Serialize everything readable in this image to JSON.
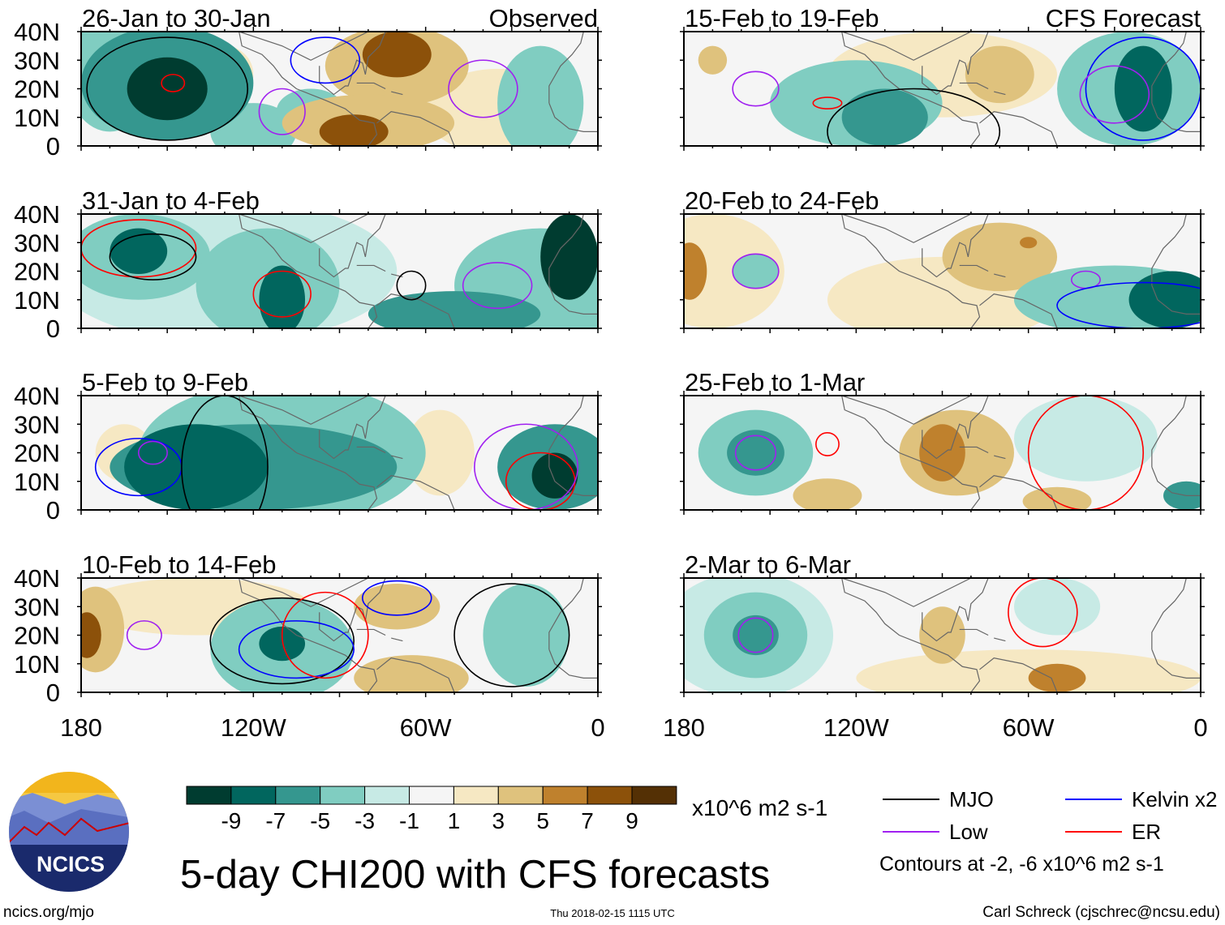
{
  "chart_data": {
    "type": "heatmap",
    "title": "5-day CHI200 with CFS forecasts",
    "units": "x10^6 m2 s-1",
    "lat_ticks": [
      "40N",
      "30N",
      "20N",
      "10N",
      "0"
    ],
    "lat_values": [
      40,
      30,
      20,
      10,
      0
    ],
    "lon_ticks": [
      "180",
      "120W",
      "60W",
      "0"
    ],
    "lon_values": [
      -180,
      -120,
      -60,
      0
    ],
    "xlim": [
      -180,
      0
    ],
    "ylim": [
      0,
      40
    ],
    "colorbar": {
      "labels": [
        "-9",
        "-7",
        "-5",
        "-3",
        "-1",
        "1",
        "3",
        "5",
        "7",
        "9"
      ],
      "colors": [
        "#003c30",
        "#01665e",
        "#35978f",
        "#80cdc1",
        "#c7eae5",
        "#f5f5f5",
        "#f6e8c3",
        "#dfc27d",
        "#bf812d",
        "#8c510a",
        "#543005"
      ]
    },
    "legend": {
      "items": [
        {
          "label": "MJO",
          "color": "#000000"
        },
        {
          "label": "Low",
          "color": "#a020f0"
        },
        {
          "label": "Kelvin x2",
          "color": "#0000ff"
        },
        {
          "label": "ER",
          "color": "#ff0000"
        }
      ],
      "note": "Contours at -2, -6 x10^6 m2 s-1"
    },
    "panels": [
      {
        "title": "26-Jan to 30-Jan",
        "tag": "Observed",
        "blobs": [
          [
            -150,
            22,
            -5,
            30,
            20
          ],
          [
            -170,
            25,
            -3,
            15,
            20
          ],
          [
            -120,
            5,
            -3,
            15,
            10
          ],
          [
            -100,
            12,
            -3,
            12,
            8
          ],
          [
            -20,
            15,
            -3,
            15,
            20
          ],
          [
            -150,
            20,
            -9,
            14,
            11
          ],
          [
            -70,
            28,
            3,
            25,
            14
          ],
          [
            -80,
            8,
            3,
            30,
            10
          ],
          [
            -70,
            32,
            7,
            12,
            8
          ],
          [
            -85,
            5,
            7,
            12,
            6
          ],
          [
            -130,
            25,
            1,
            10,
            10
          ],
          [
            -35,
            12,
            1,
            25,
            15
          ]
        ],
        "contours": [
          [
            "MJO",
            -150,
            20,
            28,
            18
          ],
          [
            "Kelvin x2",
            -95,
            30,
            12,
            8
          ],
          [
            "Low",
            -110,
            12,
            8,
            8
          ],
          [
            "ER",
            -148,
            22,
            4,
            3
          ],
          [
            "Low",
            -40,
            20,
            12,
            10
          ]
        ]
      },
      {
        "title": "31-Jan to 4-Feb",
        "tag": "",
        "blobs": [
          [
            -130,
            20,
            -1,
            60,
            25
          ],
          [
            -160,
            25,
            -3,
            25,
            15
          ],
          [
            -115,
            15,
            -3,
            25,
            20
          ],
          [
            -20,
            15,
            -3,
            30,
            20
          ],
          [
            -50,
            5,
            -5,
            30,
            8
          ],
          [
            -160,
            27,
            -7,
            10,
            8
          ],
          [
            -110,
            10,
            -7,
            8,
            12
          ],
          [
            -10,
            25,
            -9,
            10,
            15
          ]
        ],
        "contours": [
          [
            "ER",
            -160,
            28,
            20,
            10
          ],
          [
            "MJO",
            -155,
            25,
            15,
            8
          ],
          [
            "ER",
            -110,
            12,
            10,
            8
          ],
          [
            "Low",
            -35,
            15,
            12,
            8
          ],
          [
            "MJO",
            -65,
            15,
            5,
            5
          ]
        ]
      },
      {
        "title": "5-Feb to 9-Feb",
        "tag": "",
        "blobs": [
          [
            -110,
            20,
            -3,
            50,
            25
          ],
          [
            -120,
            15,
            -5,
            50,
            15
          ],
          [
            -15,
            15,
            -5,
            20,
            15
          ],
          [
            -140,
            15,
            -7,
            25,
            15
          ],
          [
            -15,
            12,
            -9,
            8,
            8
          ],
          [
            -55,
            20,
            1,
            12,
            15
          ],
          [
            -165,
            20,
            1,
            10,
            10
          ]
        ],
        "contours": [
          [
            "Kelvin x2",
            -160,
            15,
            15,
            10
          ],
          [
            "Low",
            -155,
            20,
            5,
            4
          ],
          [
            "ER",
            -20,
            10,
            12,
            10
          ],
          [
            "Low",
            -25,
            15,
            18,
            15
          ],
          [
            "MJO",
            -130,
            15,
            15,
            25
          ]
        ]
      },
      {
        "title": "10-Feb to 14-Feb",
        "tag": "",
        "blobs": [
          [
            -140,
            30,
            1,
            40,
            10
          ],
          [
            -175,
            22,
            3,
            10,
            15
          ],
          [
            -178,
            20,
            7,
            5,
            8
          ],
          [
            -110,
            15,
            -3,
            25,
            18
          ],
          [
            -110,
            17,
            -7,
            8,
            6
          ],
          [
            -70,
            30,
            3,
            15,
            8
          ],
          [
            -65,
            5,
            3,
            20,
            8
          ],
          [
            -25,
            20,
            -3,
            15,
            18
          ]
        ],
        "contours": [
          [
            "Low",
            -158,
            20,
            6,
            5
          ],
          [
            "MJO",
            -110,
            18,
            25,
            15
          ],
          [
            "Kelvin x2",
            -105,
            15,
            20,
            10
          ],
          [
            "ER",
            -95,
            20,
            15,
            15
          ],
          [
            "Kelvin x2",
            -70,
            33,
            12,
            6
          ],
          [
            "MJO",
            -30,
            20,
            20,
            18
          ]
        ]
      },
      {
        "title": "15-Feb to 19-Feb",
        "tag": "CFS Forecast",
        "blobs": [
          [
            -90,
            25,
            1,
            40,
            15
          ],
          [
            -25,
            20,
            -3,
            25,
            20
          ],
          [
            -120,
            15,
            -3,
            30,
            15
          ],
          [
            -110,
            10,
            -5,
            15,
            10
          ],
          [
            -20,
            20,
            -7,
            10,
            15
          ],
          [
            -70,
            25,
            3,
            12,
            10
          ],
          [
            -170,
            30,
            3,
            5,
            5
          ]
        ],
        "contours": [
          [
            "Low",
            -155,
            20,
            8,
            6
          ],
          [
            "ER",
            -130,
            15,
            5,
            2
          ],
          [
            "Kelvin x2",
            -20,
            20,
            20,
            18
          ],
          [
            "Low",
            -30,
            18,
            12,
            10
          ],
          [
            "MJO",
            -100,
            5,
            30,
            15
          ]
        ]
      },
      {
        "title": "20-Feb to 24-Feb",
        "tag": "",
        "blobs": [
          [
            -170,
            20,
            1,
            25,
            20
          ],
          [
            -90,
            10,
            1,
            40,
            15
          ],
          [
            -178,
            20,
            5,
            6,
            10
          ],
          [
            -70,
            25,
            3,
            20,
            12
          ],
          [
            -60,
            30,
            5,
            3,
            2
          ],
          [
            -155,
            20,
            -3,
            8,
            6
          ],
          [
            -30,
            10,
            -3,
            35,
            12
          ],
          [
            -10,
            10,
            -7,
            15,
            10
          ]
        ],
        "contours": [
          [
            "Low",
            -155,
            20,
            8,
            6
          ],
          [
            "Low",
            -40,
            17,
            5,
            3
          ],
          [
            "Kelvin x2",
            -20,
            8,
            30,
            8
          ]
        ]
      },
      {
        "title": "25-Feb to 1-Mar",
        "tag": "",
        "blobs": [
          [
            -155,
            20,
            -3,
            20,
            15
          ],
          [
            -155,
            20,
            -5,
            10,
            8
          ],
          [
            -85,
            20,
            3,
            20,
            15
          ],
          [
            -90,
            20,
            5,
            8,
            10
          ],
          [
            -130,
            5,
            3,
            12,
            6
          ],
          [
            -50,
            3,
            3,
            12,
            5
          ],
          [
            -40,
            25,
            -1,
            25,
            15
          ],
          [
            -5,
            5,
            -5,
            8,
            5
          ]
        ],
        "contours": [
          [
            "Low",
            -155,
            20,
            7,
            6
          ],
          [
            "ER",
            -130,
            23,
            4,
            4
          ],
          [
            "ER",
            -40,
            20,
            20,
            20
          ]
        ]
      },
      {
        "title": "2-Mar to 6-Mar",
        "tag": "",
        "blobs": [
          [
            -158,
            20,
            -1,
            30,
            22
          ],
          [
            -155,
            20,
            -3,
            18,
            15
          ],
          [
            -155,
            20,
            -5,
            8,
            7
          ],
          [
            -60,
            5,
            1,
            60,
            10
          ],
          [
            -50,
            5,
            5,
            10,
            5
          ],
          [
            -90,
            20,
            3,
            8,
            10
          ],
          [
            -50,
            30,
            -1,
            15,
            10
          ]
        ],
        "contours": [
          [
            "Low",
            -155,
            20,
            6,
            6
          ],
          [
            "ER",
            -55,
            28,
            12,
            12
          ]
        ]
      }
    ]
  },
  "footer": {
    "logo_text": "NCICS",
    "url": "ncics.org/mjo",
    "timestamp": "Thu 2018-02-15 1115 UTC",
    "author": "Carl Schreck (cjschrec@ncsu.edu)"
  }
}
